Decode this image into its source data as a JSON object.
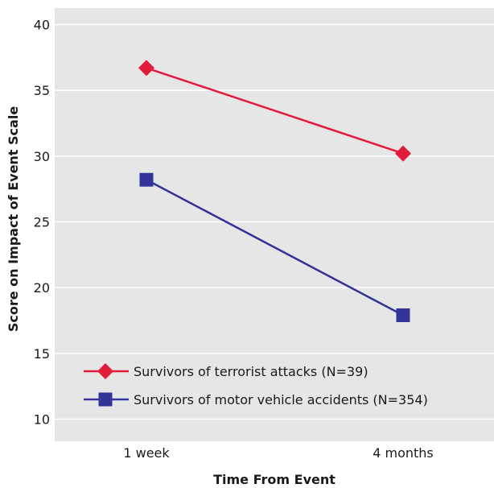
{
  "chart_data": {
    "type": "line",
    "xlabel": "Time From Event",
    "ylabel": "Score on Impact of Event Scale",
    "categories": [
      "1 week",
      "4 months"
    ],
    "ylim": [
      9,
      41
    ],
    "yticks": [
      10,
      15,
      20,
      25,
      30,
      35,
      40
    ],
    "grid": true,
    "legend_position": "bottom-left",
    "background": "#e6e6e6",
    "series": [
      {
        "name": "Survivors of terrorist attacks (N=39)",
        "values": [
          36.7,
          30.2
        ],
        "color": "#e31b3a",
        "marker": "diamond"
      },
      {
        "name": "Survivors of motor vehicle accidents (N=354)",
        "values": [
          28.2,
          17.9
        ],
        "color": "#333399",
        "marker": "square"
      }
    ]
  }
}
